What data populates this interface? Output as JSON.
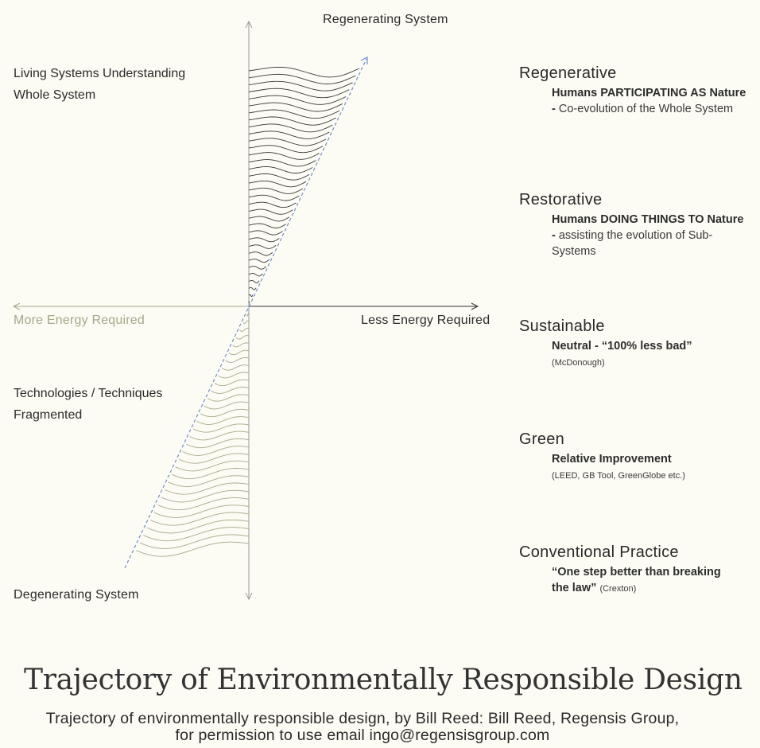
{
  "colors": {
    "background": "#fcfbf4",
    "upper_lines": "#3a3a3a",
    "lower_lines": "#a9a98c",
    "trajectory_dash": "#6f8fcf",
    "muted_label": "#a6a889"
  },
  "axes": {
    "top_label": "Regenerating System",
    "bottom_label": "Degenerating System",
    "left_label": "More Energy Required",
    "right_label": "Less Energy Required"
  },
  "left_annotations": {
    "upper": {
      "line1": "Living Systems Understanding",
      "line2": "Whole System"
    },
    "lower": {
      "line1": "Technologies / Techniques",
      "line2": "Fragmented"
    }
  },
  "stages": [
    {
      "title": "Regenerative",
      "bold": "Humans PARTICIPATING AS Nature -",
      "text": " Co-evolution of the Whole System",
      "small": ""
    },
    {
      "title": "Restorative",
      "bold": "Humans DOING THINGS TO Nature -",
      "text": " assisting the evolution of Sub-Systems",
      "small": ""
    },
    {
      "title": "Sustainable",
      "bold": "Neutral - “100% less bad”",
      "text": "",
      "small": "(McDonough)"
    },
    {
      "title": "Green",
      "bold": "Relative Improvement",
      "text": "",
      "small": "(LEED, GB Tool, GreenGlobe etc.)"
    },
    {
      "title": "Conventional Practice",
      "bold": "“One step better than breaking the law”",
      "text": "",
      "small": "(Crexton)"
    }
  ],
  "title": "Trajectory of Environmentally Responsible Design",
  "caption": {
    "line1": "Trajectory of environmentally responsible design, by Bill Reed: Bill Reed, Regensis Group,",
    "line2": "for permission to use email ingo@regensisgroup.com"
  }
}
